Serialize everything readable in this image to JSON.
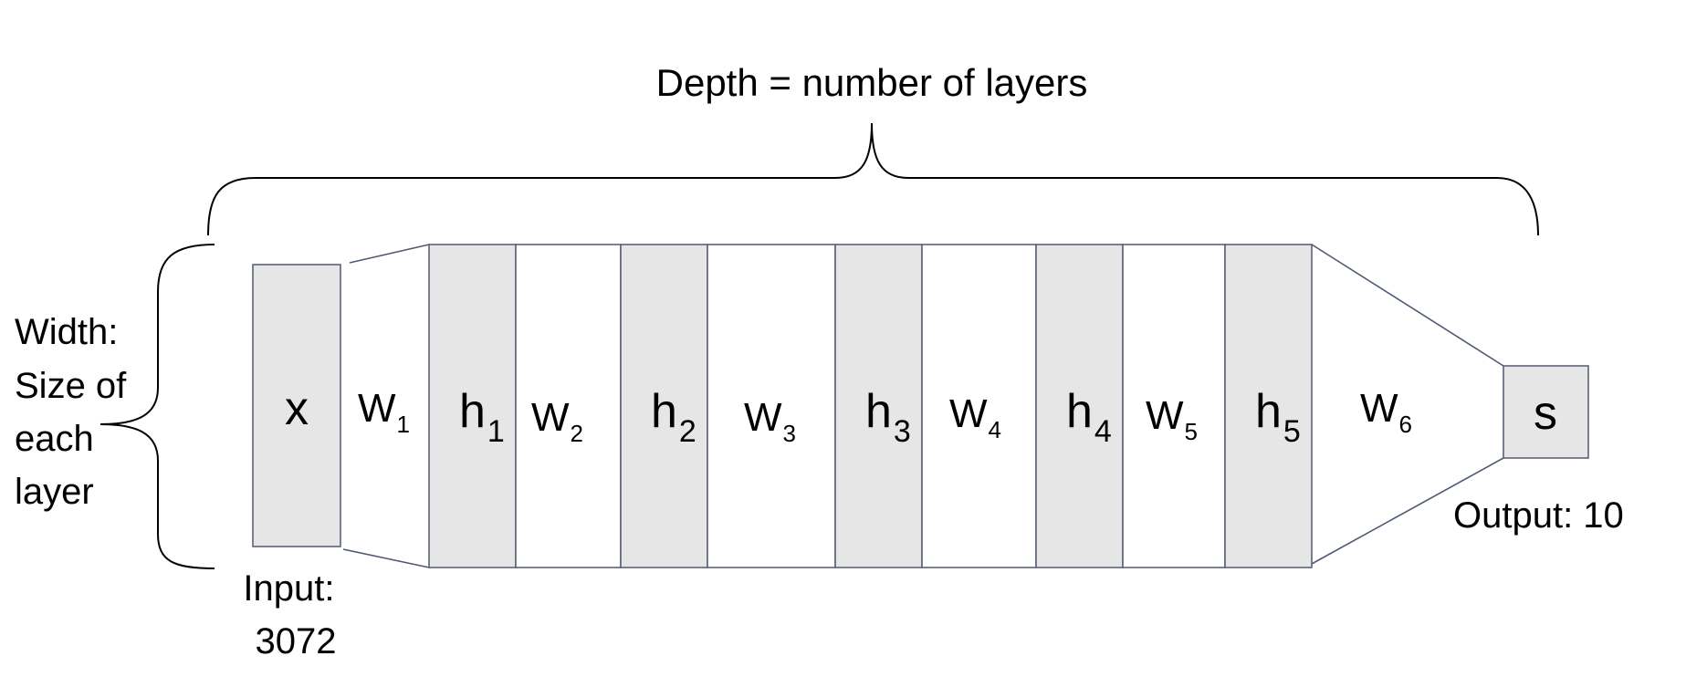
{
  "depth_label": "Depth = number of layers",
  "width_label": [
    "Width:",
    "Size of",
    "each",
    "layer"
  ],
  "input_label": [
    "Input:",
    "3072"
  ],
  "output_label": "Output: 10",
  "layers": {
    "x": "x",
    "s": "s",
    "h": [
      {
        "base": "h",
        "sub": "1"
      },
      {
        "base": "h",
        "sub": "2"
      },
      {
        "base": "h",
        "sub": "3"
      },
      {
        "base": "h",
        "sub": "4"
      },
      {
        "base": "h",
        "sub": "5"
      }
    ]
  },
  "weights": [
    {
      "base": "W",
      "sub": "1"
    },
    {
      "base": "W",
      "sub": "2"
    },
    {
      "base": "W",
      "sub": "3"
    },
    {
      "base": "W",
      "sub": "4"
    },
    {
      "base": "W",
      "sub": "5"
    },
    {
      "base": "W",
      "sub": "6"
    }
  ],
  "colors": {
    "layer_fill": "#e6e6e6",
    "border": "#5a6378"
  }
}
